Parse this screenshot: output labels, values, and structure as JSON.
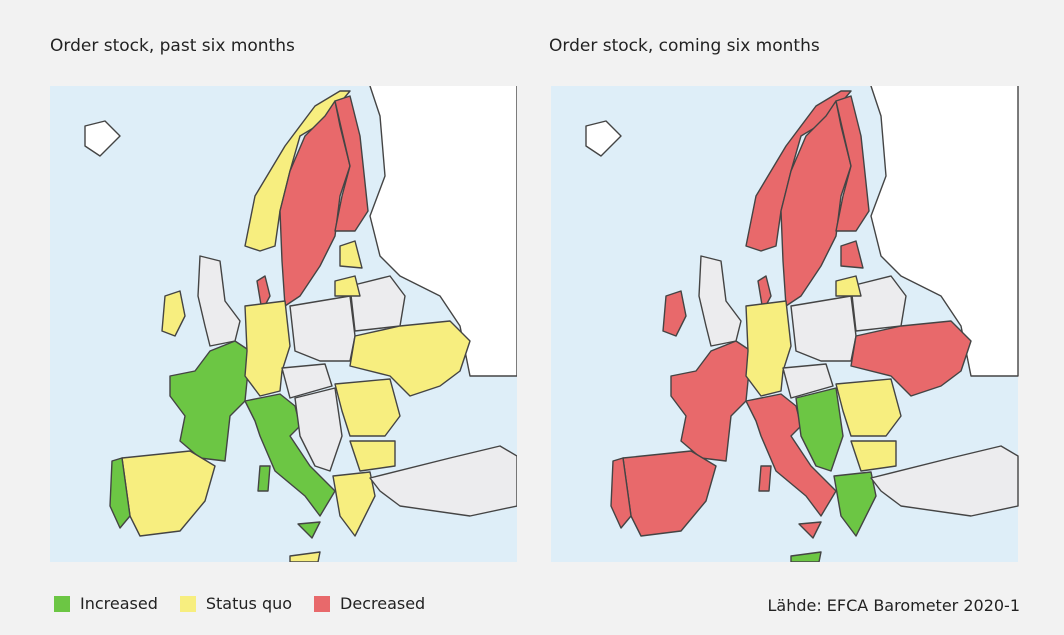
{
  "panels": [
    {
      "title": "Order stock, past six months"
    },
    {
      "title": "Order stock, coming six months"
    }
  ],
  "legend": [
    {
      "label": "Increased",
      "color": "#6cc644"
    },
    {
      "label": "Status quo",
      "color": "#f7ee7f"
    },
    {
      "label": "Decreased",
      "color": "#e8696b"
    }
  ],
  "source": "Lähde: EFCA Barometer 2020-1"
}
